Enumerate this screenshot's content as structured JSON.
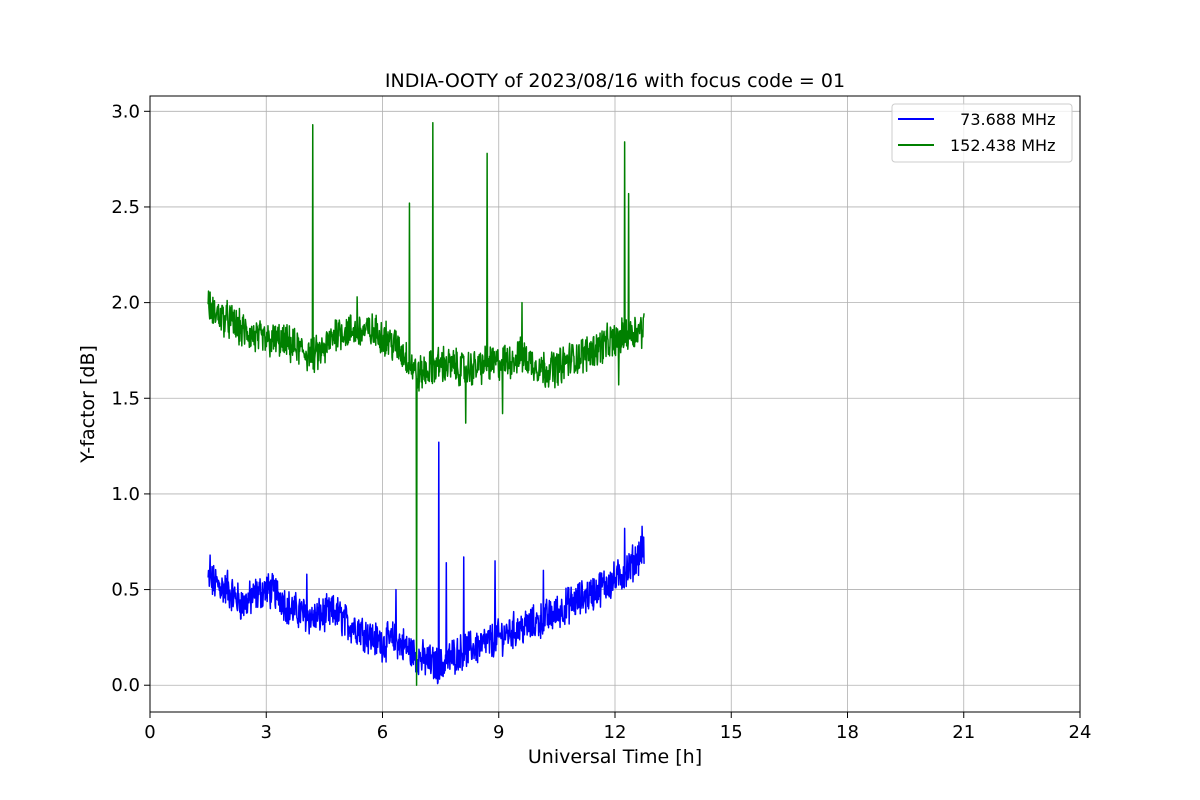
{
  "chart_data": {
    "type": "line",
    "title": "INDIA-OOTY of 2023/08/16 with focus code = 01",
    "xlabel": "Universal Time [h]",
    "ylabel": "Y-factor [dB]",
    "xlim": [
      0,
      24
    ],
    "ylim": [
      -0.14,
      3.08
    ],
    "xticks": [
      0,
      3,
      6,
      9,
      12,
      15,
      18,
      21,
      24
    ],
    "xtick_labels": [
      "0",
      "3",
      "6",
      "9",
      "12",
      "15",
      "18",
      "21",
      "24"
    ],
    "yticks": [
      0.0,
      0.5,
      1.0,
      1.5,
      2.0,
      2.5,
      3.0
    ],
    "ytick_labels": [
      "0.0",
      "0.5",
      "1.0",
      "1.5",
      "2.0",
      "2.5",
      "3.0"
    ],
    "grid": true,
    "legend_position": "top-right",
    "series": [
      {
        "name": "  73.688 MHz",
        "color": "#0000ff",
        "points": [
          [
            1.5,
            0.55
          ],
          [
            1.8,
            0.52
          ],
          [
            2.1,
            0.48
          ],
          [
            2.4,
            0.42
          ],
          [
            2.7,
            0.47
          ],
          [
            3.0,
            0.5
          ],
          [
            3.3,
            0.48
          ],
          [
            3.6,
            0.4
          ],
          [
            3.9,
            0.38
          ],
          [
            4.2,
            0.35
          ],
          [
            4.5,
            0.37
          ],
          [
            4.8,
            0.38
          ],
          [
            5.1,
            0.32
          ],
          [
            5.4,
            0.3
          ],
          [
            5.7,
            0.25
          ],
          [
            6.0,
            0.22
          ],
          [
            6.3,
            0.24
          ],
          [
            6.6,
            0.2
          ],
          [
            6.9,
            0.15
          ],
          [
            7.2,
            0.12
          ],
          [
            7.5,
            0.1
          ],
          [
            7.8,
            0.15
          ],
          [
            8.1,
            0.18
          ],
          [
            8.4,
            0.2
          ],
          [
            8.7,
            0.22
          ],
          [
            9.0,
            0.25
          ],
          [
            9.3,
            0.28
          ],
          [
            9.6,
            0.3
          ],
          [
            9.9,
            0.32
          ],
          [
            10.2,
            0.35
          ],
          [
            10.5,
            0.38
          ],
          [
            10.8,
            0.42
          ],
          [
            11.1,
            0.45
          ],
          [
            11.4,
            0.48
          ],
          [
            11.7,
            0.52
          ],
          [
            12.0,
            0.55
          ],
          [
            12.3,
            0.6
          ],
          [
            12.5,
            0.65
          ],
          [
            12.75,
            0.72
          ]
        ],
        "spikes": [
          [
            1.55,
            0.68
          ],
          [
            2.0,
            0.6
          ],
          [
            4.05,
            0.58
          ],
          [
            6.35,
            0.5
          ],
          [
            7.45,
            1.27
          ],
          [
            7.65,
            0.64
          ],
          [
            8.1,
            0.67
          ],
          [
            8.9,
            0.65
          ],
          [
            10.15,
            0.6
          ],
          [
            12.25,
            0.82
          ],
          [
            12.7,
            0.83
          ]
        ]
      },
      {
        "name": "152.438 MHz",
        "color": "#008000",
        "points": [
          [
            1.5,
            1.97
          ],
          [
            1.8,
            1.93
          ],
          [
            2.1,
            1.9
          ],
          [
            2.4,
            1.85
          ],
          [
            2.7,
            1.82
          ],
          [
            3.0,
            1.8
          ],
          [
            3.3,
            1.8
          ],
          [
            3.6,
            1.78
          ],
          [
            3.9,
            1.75
          ],
          [
            4.2,
            1.72
          ],
          [
            4.5,
            1.75
          ],
          [
            4.8,
            1.85
          ],
          [
            5.1,
            1.85
          ],
          [
            5.4,
            1.85
          ],
          [
            5.7,
            1.85
          ],
          [
            6.0,
            1.83
          ],
          [
            6.3,
            1.78
          ],
          [
            6.6,
            1.72
          ],
          [
            6.9,
            1.62
          ],
          [
            7.2,
            1.65
          ],
          [
            7.5,
            1.68
          ],
          [
            7.8,
            1.67
          ],
          [
            8.1,
            1.65
          ],
          [
            8.4,
            1.66
          ],
          [
            8.7,
            1.68
          ],
          [
            9.0,
            1.68
          ],
          [
            9.3,
            1.7
          ],
          [
            9.6,
            1.72
          ],
          [
            9.9,
            1.68
          ],
          [
            10.2,
            1.65
          ],
          [
            10.5,
            1.66
          ],
          [
            10.8,
            1.7
          ],
          [
            11.1,
            1.72
          ],
          [
            11.4,
            1.75
          ],
          [
            11.7,
            1.78
          ],
          [
            12.0,
            1.8
          ],
          [
            12.3,
            1.83
          ],
          [
            12.5,
            1.85
          ],
          [
            12.75,
            1.87
          ]
        ],
        "spikes": [
          [
            4.2,
            2.93
          ],
          [
            6.7,
            2.52
          ],
          [
            6.88,
            0.0
          ],
          [
            7.3,
            2.94
          ],
          [
            8.7,
            2.78
          ],
          [
            9.6,
            2.0
          ],
          [
            8.15,
            1.37
          ],
          [
            9.1,
            1.42
          ],
          [
            12.25,
            2.84
          ],
          [
            12.35,
            2.57
          ],
          [
            12.1,
            1.57
          ],
          [
            5.35,
            2.03
          ]
        ]
      }
    ]
  }
}
